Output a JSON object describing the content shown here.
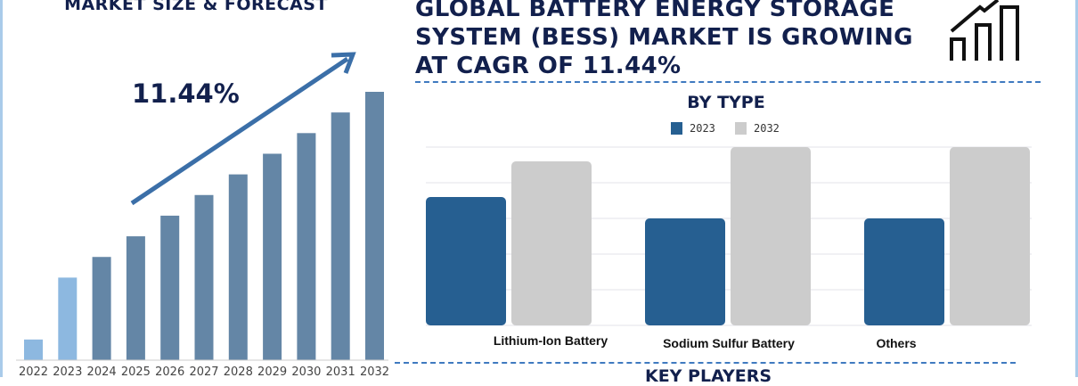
{
  "left_panel": {
    "title": "MARKET SIZE & FORECAST",
    "cagr_label": "11.44%"
  },
  "header": {
    "title": "GLOBAL BATTERY ENERGY STORAGE SYSTEM (BESS) MARKET IS GROWING AT CAGR OF 11.44%",
    "icon": "bar-chart-growth-icon"
  },
  "footer": {
    "next_section": "KEY PLAYERS"
  },
  "colors": {
    "navy": "#12204d",
    "hist": "#8db8e0",
    "forecast": "#6486a6",
    "arrow": "#3b6fa8",
    "s2023": "#265f91",
    "s2032": "#cccccc"
  },
  "chart_data": [
    {
      "type": "bar",
      "title": "MARKET SIZE & FORECAST",
      "categories": [
        "2022",
        "2023",
        "2024",
        "2025",
        "2026",
        "2027",
        "2028",
        "2029",
        "2030",
        "2031",
        "2032"
      ],
      "values": [
        1.0,
        4.0,
        5.0,
        6.0,
        7.0,
        8.0,
        9.0,
        10.0,
        11.0,
        12.0,
        13.0
      ],
      "annotation": "11.44%",
      "grid": false
    },
    {
      "type": "bar",
      "title": "BY TYPE",
      "categories": [
        "Lithium-Ion Battery",
        "Sodium Sulfur Battery",
        "Others"
      ],
      "series": [
        {
          "name": "2023",
          "values": [
            3.6,
            3.0,
            3.0
          ]
        },
        {
          "name": "2032",
          "values": [
            4.6,
            5.0,
            5.0
          ]
        }
      ],
      "ylim": [
        0,
        5
      ],
      "grid": true,
      "legend": "top-center"
    }
  ]
}
